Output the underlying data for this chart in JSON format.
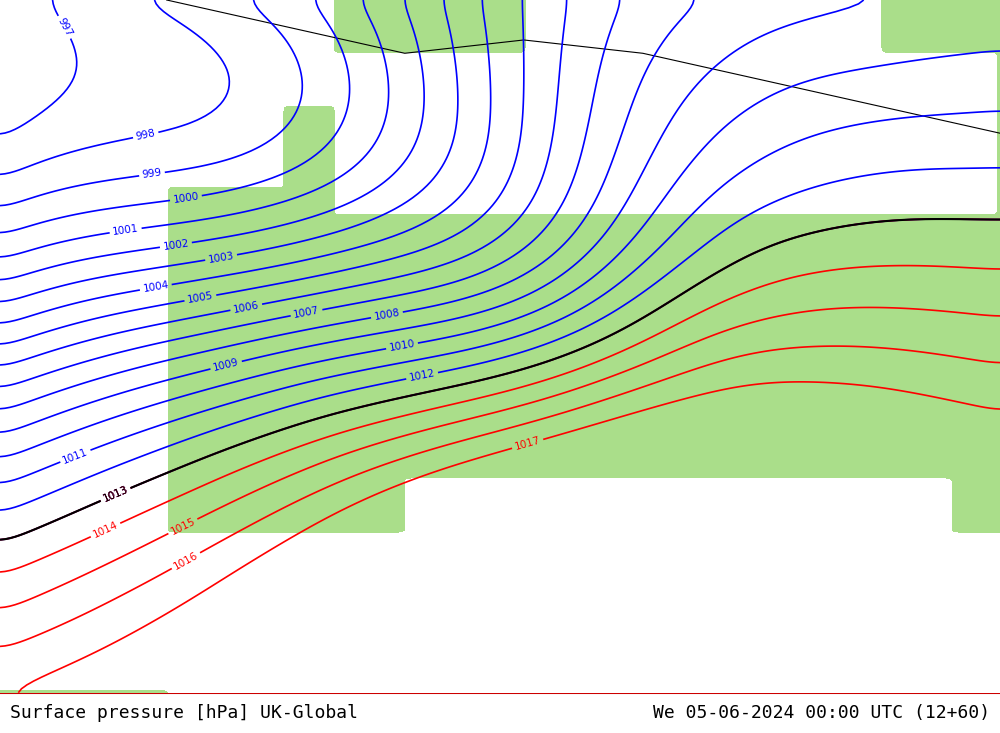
{
  "title_left": "Surface pressure [hPa] UK-Global",
  "title_right": "We 05-06-2024 00:00 UTC (12+60)",
  "title_fontsize": 13,
  "title_color": "#000000",
  "background_land_color": "#aade8a",
  "background_sea_color": "#d0d0d0",
  "background_highpres_color": "#e8e8e8",
  "blue_contour_color": "#0000ff",
  "red_contour_color": "#ff0000",
  "black_contour_color": "#000000",
  "blue_levels": [
    997,
    998,
    999,
    1000,
    1001,
    1002,
    1003,
    1004,
    1005,
    1006,
    1007,
    1008,
    1009,
    1010,
    1011,
    1012,
    1013
  ],
  "red_levels": [
    1013,
    1014,
    1015,
    1016,
    1017
  ],
  "black_levels": [
    1013
  ],
  "contour_linewidth": 1.2,
  "label_fontsize": 7.5,
  "figsize": [
    10.0,
    7.33
  ],
  "dpi": 100,
  "lon_min": -12,
  "lon_max": 30,
  "lat_min": 36,
  "lat_max": 62,
  "bottom_bar_color": "#ffffff",
  "bottom_bar_height": 0.055
}
